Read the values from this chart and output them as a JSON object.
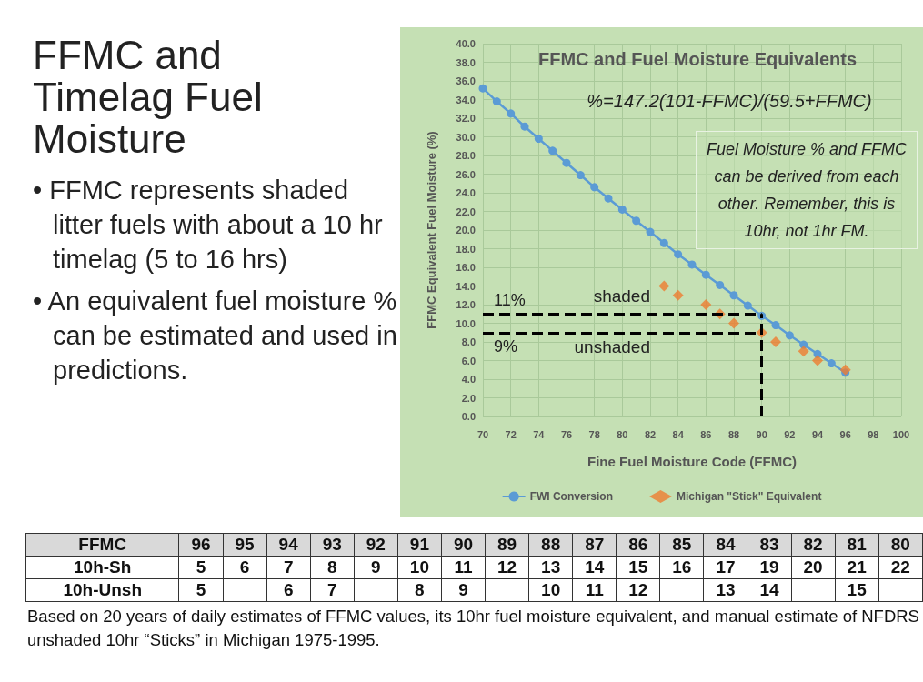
{
  "chart_data": [
    {
      "type": "other",
      "title": "FFMC and Timelag Fuel Moisture",
      "annotations": [
        "• FFMC represents shaded litter fuels with about a 10 hr timelag (5 to 16 hrs)",
        "• An equivalent fuel moisture % can be estimated and used in predictions."
      ]
    },
    {
      "type": "line",
      "title": "FFMC and Fuel Moisture Equivalents",
      "xlabel": "Fine Fuel Moisture Code (FFMC)",
      "ylabel": "FFMC Equivalent Fuel Moisture (%)",
      "x": [
        70,
        71,
        72,
        73,
        74,
        75,
        76,
        77,
        78,
        79,
        80,
        81,
        82,
        83,
        84,
        85,
        86,
        87,
        88,
        89,
        90,
        91,
        92,
        93,
        94,
        95,
        96
      ],
      "series": [
        {
          "name": "FWI Conversion",
          "color": "#5b9bd5",
          "marker": "circle",
          "values": [
            35.2,
            33.8,
            32.5,
            31.1,
            29.8,
            28.5,
            27.2,
            25.9,
            24.6,
            23.4,
            22.2,
            21.0,
            19.8,
            18.6,
            17.4,
            16.3,
            15.2,
            14.1,
            13.0,
            11.9,
            10.8,
            9.8,
            8.7,
            7.7,
            6.7,
            5.7,
            4.7
          ]
        },
        {
          "name": "Michigan \"Stick\" Equivalent",
          "type": "scatter",
          "color": "#ed7d31",
          "marker": "diamond",
          "x": [
            83,
            84,
            86,
            87,
            88,
            90,
            91,
            93,
            94,
            96
          ],
          "values": [
            14,
            13,
            12,
            11,
            10,
            9,
            8,
            7,
            6,
            5
          ]
        }
      ],
      "xlim": [
        70,
        100
      ],
      "xticks": [
        70,
        72,
        74,
        76,
        78,
        80,
        82,
        84,
        86,
        88,
        90,
        92,
        94,
        96,
        98,
        100
      ],
      "ylim": [
        0,
        40
      ],
      "yticks": [
        {
          "value": 0,
          "label": "0.0"
        },
        {
          "value": 2,
          "label": "2.0"
        },
        {
          "value": 4,
          "label": "4.0"
        },
        {
          "value": 6,
          "label": "6.0"
        },
        {
          "value": 8,
          "label": "8.0"
        },
        {
          "value": 10,
          "label": "10.0"
        },
        {
          "value": 12,
          "label": "12.0"
        },
        {
          "value": 14,
          "label": "14.0"
        },
        {
          "value": 16,
          "label": "16.0"
        },
        {
          "value": 18,
          "label": "18.0"
        },
        {
          "value": 20,
          "label": "20.0"
        },
        {
          "value": 22,
          "label": "22.0"
        },
        {
          "value": 24,
          "label": "24.0"
        },
        {
          "value": 26,
          "label": "26.0"
        },
        {
          "value": 28,
          "label": "28.0"
        },
        {
          "value": 30,
          "label": "30.0"
        },
        {
          "value": 32,
          "label": "32.0"
        },
        {
          "value": 34,
          "label": "34.0"
        },
        {
          "value": 36,
          "label": "36.0"
        },
        {
          "value": 38,
          "label": "38.0"
        },
        {
          "value": 40,
          "label": "40.0"
        }
      ],
      "grid": true,
      "legend": "bottom",
      "ref_lines": [
        {
          "axis": "y",
          "value": 11,
          "label": "11%",
          "color": "#000000",
          "line_style": "dashed"
        },
        {
          "axis": "y",
          "value": 9,
          "label": "9%",
          "color": "#000000",
          "line_style": "dashed"
        },
        {
          "axis": "x",
          "value": 90,
          "color": "#000000",
          "line_style": "dashed"
        }
      ],
      "annotations": [
        "%=147.2(101-FFMC)/(59.5+FFMC)",
        "Fuel Moisture % and FFMC can be derived from each other. Remember, this is 10hr, not 1hr FM.",
        {
          "text": "shaded",
          "x": 82,
          "y": 11
        },
        {
          "text": "unshaded",
          "x": 82,
          "y": 9
        }
      ]
    },
    {
      "type": "heatmap",
      "xlabel": "FFMC",
      "categories": [
        "96",
        "95",
        "94",
        "93",
        "92",
        "91",
        "90",
        "89",
        "88",
        "87",
        "86",
        "85",
        "84",
        "83",
        "82",
        "81",
        "80"
      ],
      "y_categories": [
        "10h-Sh",
        "10h-Unsh"
      ],
      "cells": [
        [
          5,
          6,
          7,
          8,
          9,
          10,
          11,
          12,
          13,
          14,
          15,
          16,
          17,
          19,
          20,
          21,
          22
        ],
        [
          5,
          null,
          6,
          7,
          null,
          8,
          9,
          null,
          10,
          11,
          12,
          null,
          13,
          14,
          null,
          15,
          null
        ]
      ],
      "data_labels": true,
      "annotations": [
        "Based on 20 years of daily estimates of FFMC values, its 10hr fuel moisture equivalent, and manual estimate of NFDRS unshaded 10hr “Sticks” in Michigan 1975-1995."
      ]
    }
  ]
}
